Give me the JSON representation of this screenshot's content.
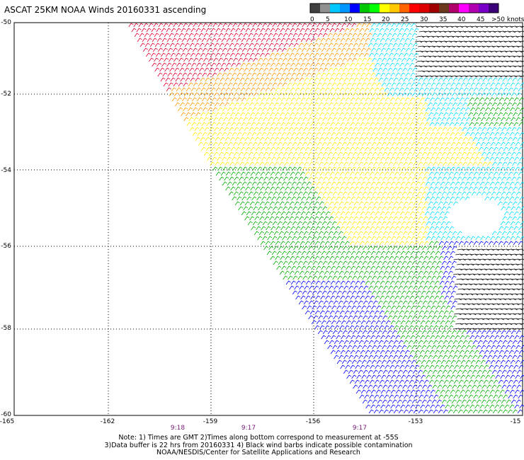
{
  "title": "ASCAT 25KM NOAA Winds 20160331 ascending",
  "legend": {
    "colors": [
      "#404040",
      "#909090",
      "#00c8ff",
      "#0096ff",
      "#0000ff",
      "#00c800",
      "#00ff00",
      "#ffff00",
      "#ffc800",
      "#ff6400",
      "#ff0000",
      "#dc0000",
      "#a00000",
      "#6b3a1e",
      "#b0006b",
      "#ff00ff",
      "#b000b0",
      "#7800c8",
      "#3c0078"
    ],
    "labels": [
      "0",
      "5",
      "10",
      "15",
      "20",
      "25",
      "30",
      "35",
      "40",
      "45",
      ">50 knots"
    ]
  },
  "axes": {
    "lat_labels": [
      "-50",
      "-52",
      "-54",
      "-56",
      "-58",
      "-60"
    ],
    "lon_labels": [
      "-165",
      "-162",
      "-159",
      "-156",
      "-153",
      "-15"
    ]
  },
  "times": [
    "9:18",
    "9:17",
    "9:17"
  ],
  "notes": [
    "Note: 1) Times are GMT 2)Times along bottom correspond to measurement at -55S",
    "3)Data buffer is 22 hrs from 20160331 4) Black wind barbs indicate possible contamination",
    "NOAA/NESDIS/Center for Satellite Applications and Research"
  ],
  "wind_color_scale": {
    "calm": "#000000",
    "light": "#00e0ff",
    "moderate": "#0000ff",
    "fresh": "#00b000",
    "strong": "#ffee00",
    "gale": "#ff9900",
    "storm": "#e00030"
  }
}
